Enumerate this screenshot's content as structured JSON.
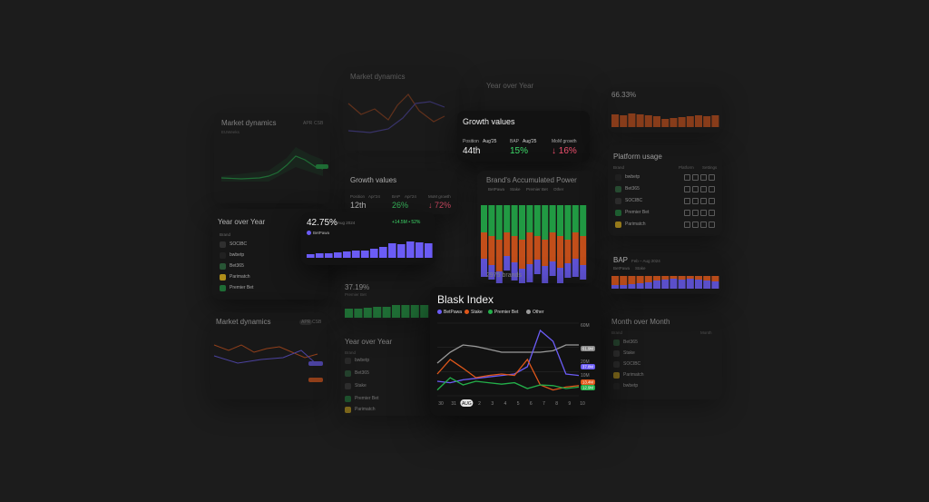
{
  "colors": {
    "purple": "#6b5cf6",
    "orange": "#e0571a",
    "green": "#23b04a",
    "grey": "#9a9a9a",
    "red": "#f0506e",
    "greenText": "#3ddc6a"
  },
  "market_dynamics_a": {
    "title": "Market dynamics",
    "opt1": "APR",
    "opt2": "CSB",
    "sub": "EUWeeks"
  },
  "market_dynamics_b": {
    "title": "Market dynamics",
    "opt1": "APR",
    "opt2": "CSB"
  },
  "market_dynamics_top": {
    "title": "Market dynamics"
  },
  "growth_a": {
    "title": "Growth values",
    "pos_label": "Position",
    "pos_date": "Aug'25",
    "pos_value": "44th",
    "bap_label": "BAP",
    "bap_date": "Aug'25",
    "bap_value": "15%",
    "mom_label": "MoM growth",
    "mom_value": "↓ 16%"
  },
  "growth_b": {
    "title": "Growth values",
    "pos_label": "Position",
    "pos_date": "Apr'24",
    "pos_value": "12th",
    "bap_label": "BAP",
    "bap_date": "Apr'24",
    "bap_value": "26%",
    "mom_label": "MoM growth",
    "mom_value": "↓ 72%"
  },
  "yoy_a": {
    "title": "Year over Year",
    "col": "Brand",
    "rows": [
      "SOCIBC",
      "bwbetp",
      "Bet365",
      "Parimatch",
      "Premier Bet"
    ]
  },
  "yoy_b": {
    "title": "Year over Year",
    "col": "Brand",
    "rows": [
      "bwbetp",
      "Bet365",
      "Stake",
      "Premier Bet",
      "Parimatch"
    ]
  },
  "yoy_top": {
    "title": "Year over Year"
  },
  "share_card": {
    "value": "42.75%",
    "date": "Aug 2024",
    "delta": "+14.5M • 52%",
    "legend": "BetPawa"
  },
  "share_card2": {
    "value": "37.19%",
    "legend": "Premier Bet"
  },
  "bap_power": {
    "title": "Brand's Accumulated Power",
    "legend": [
      "BetPawa",
      "Stake",
      "Premier Bet",
      "Other"
    ],
    "brands": "2975 brands"
  },
  "platform": {
    "title": "Platform usage",
    "col1": "Brand",
    "col2": "Platform",
    "col3": "Settings",
    "rows": [
      "bwbetp",
      "Bet365",
      "SOCIBC",
      "Premier Bet",
      "Parimatch"
    ]
  },
  "bap_right": {
    "title": "BAP",
    "sub": "Feb – Aug 2024",
    "legend": [
      "BetPawa",
      "Stake"
    ]
  },
  "top_right": {
    "value": "66.33%"
  },
  "mom": {
    "title": "Month over Month",
    "col": "Brand",
    "col2": "Month",
    "rows": [
      "Bet365",
      "Stake",
      "SOCIBC",
      "Parimatch",
      "bwbetp"
    ]
  },
  "blask": {
    "title": "Blask Index",
    "legend": [
      "BetPawa",
      "Stake",
      "Premier Bet",
      "Other"
    ],
    "y_labels": [
      "60M",
      "40M",
      "20M",
      "10M"
    ],
    "x_labels": [
      "30",
      "31",
      "AUG",
      "2",
      "3",
      "4",
      "5",
      "6",
      "7",
      "8",
      "9",
      "10"
    ],
    "badges": [
      "61.9M",
      "37.8M",
      "13.4M",
      "12.9M"
    ]
  }
}
